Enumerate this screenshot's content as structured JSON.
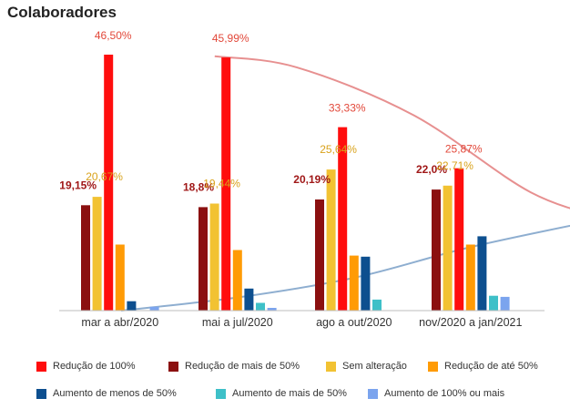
{
  "chart_data": {
    "type": "bar",
    "title": "Colaboradores",
    "xlabel": "",
    "ylabel": "",
    "ylim": [
      0,
      50
    ],
    "grid": false,
    "legend_position": "bottom",
    "categories": [
      "mar a abr/2020",
      "mai a jul/2020",
      "ago a out/2020",
      "nov/2020 a jan/2021"
    ],
    "series": [
      {
        "name": "Redução de mais de 50%",
        "color": "#8b1010",
        "values": [
          19.15,
          18.8,
          20.19,
          22.0
        ],
        "labels": [
          "19,15%",
          "18,8%",
          "20,19%",
          "22,0%"
        ]
      },
      {
        "name": "Sem alteração",
        "color": "#f2c232",
        "values": [
          20.67,
          19.44,
          25.64,
          22.71
        ],
        "labels": [
          "20,67%",
          "19,44%",
          "25,64%",
          "22,71%"
        ]
      },
      {
        "name": "Redução de 100%",
        "color": "#ff0d0d",
        "values": [
          46.5,
          45.99,
          33.33,
          25.87
        ],
        "labels": [
          "46,50%",
          "45,99%",
          "33,33%",
          "25,87%"
        ]
      },
      {
        "name": "Redução de até 50%",
        "color": "#ff9b05",
        "values": [
          12.0,
          11.0,
          10.0,
          12.0
        ],
        "labels": []
      },
      {
        "name": "Aumento de menos de 50%",
        "color": "#0d4f8f",
        "values": [
          1.7,
          4.0,
          9.8,
          13.5
        ],
        "labels": []
      },
      {
        "name": "Aumento de mais de 50%",
        "color": "#3ec0c8",
        "values": [
          0.0,
          1.4,
          2.0,
          2.7
        ],
        "labels": []
      },
      {
        "name": "Aumento de 100% ou mais",
        "color": "#7ba4ee",
        "values": [
          0.7,
          0.5,
          0.0,
          2.5
        ],
        "labels": []
      }
    ],
    "trendlines": [
      {
        "of": "Redução de 100%",
        "color": "#e79090",
        "points": [
          [
            0.8,
            46.2
          ],
          [
            1.5,
            44.2
          ],
          [
            2.5,
            35.5
          ],
          [
            3.5,
            21.5
          ],
          [
            4.2,
            16.5
          ]
        ]
      },
      {
        "of": "Aumento de menos de 50%",
        "color": "#8eaed0",
        "points": [
          [
            0.0,
            0.0
          ],
          [
            1.0,
            2.4
          ],
          [
            2.0,
            6.0
          ],
          [
            3.0,
            11.6
          ],
          [
            4.2,
            17.0
          ]
        ]
      }
    ],
    "legend": [
      {
        "name": "Redução de 100%",
        "color": "#ff0d0d"
      },
      {
        "name": "Redução de mais de 50%",
        "color": "#8b1010"
      },
      {
        "name": "Sem alteração",
        "color": "#f2c232"
      },
      {
        "name": "Redução de até 50%",
        "color": "#ff9b05"
      },
      {
        "name": "Aumento de menos de 50%",
        "color": "#0d4f8f"
      },
      {
        "name": "Aumento de mais de 50%",
        "color": "#3ec0c8"
      },
      {
        "name": "Aumento de 100% ou mais",
        "color": "#7ba4ee"
      }
    ]
  }
}
